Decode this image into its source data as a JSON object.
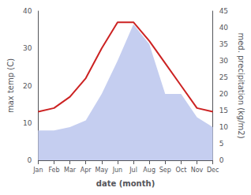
{
  "chart_data": {
    "type": "line",
    "xlabel": "date (month)",
    "ylabel": "max temp (C)",
    "y2label": "med. precipitation (kg/m2)",
    "categories": [
      "Jan",
      "Feb",
      "Mar",
      "Apr",
      "May",
      "Jun",
      "Jul",
      "Aug",
      "Sep",
      "Oct",
      "Nov",
      "Dec"
    ],
    "series": [
      {
        "type": "area",
        "axis": "y2",
        "color": "#c5cef0",
        "values": [
          9,
          9,
          10,
          12,
          20,
          30,
          41,
          35,
          20,
          20,
          13,
          10
        ]
      },
      {
        "type": "line",
        "color": "#cc2222",
        "values": [
          13,
          14,
          17,
          22,
          30,
          37,
          37,
          32,
          26,
          20,
          14,
          13
        ]
      }
    ],
    "ylim": [
      0,
      40
    ],
    "yticks": [
      0,
      10,
      20,
      30,
      40
    ],
    "y2lim": [
      0,
      45
    ],
    "y2ticks": [
      0,
      5,
      10,
      15,
      20,
      25,
      30,
      35,
      40,
      45
    ],
    "grid": false
  }
}
